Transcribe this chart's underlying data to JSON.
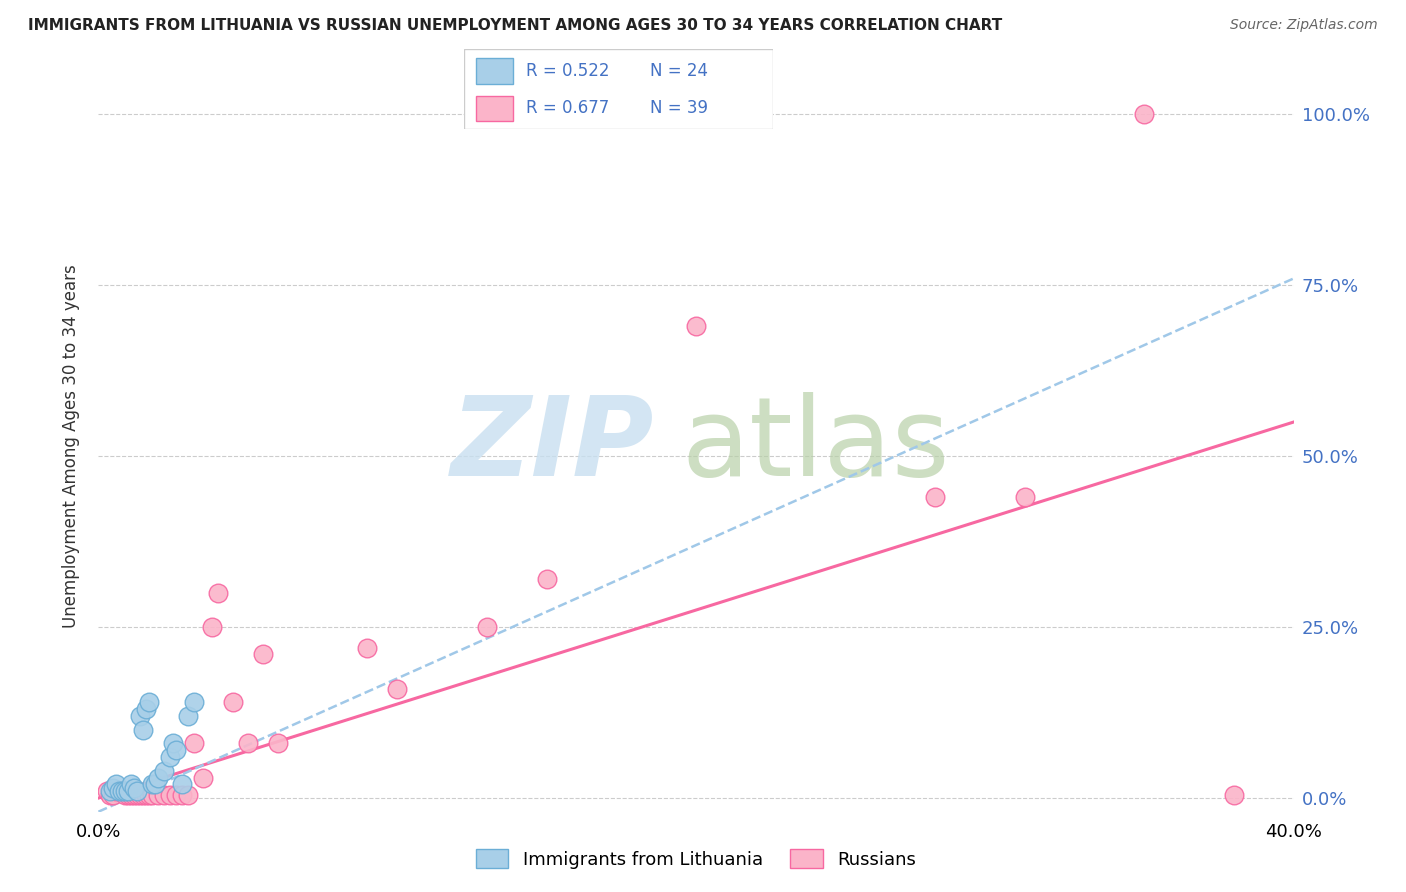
{
  "title": "IMMIGRANTS FROM LITHUANIA VS RUSSIAN UNEMPLOYMENT AMONG AGES 30 TO 34 YEARS CORRELATION CHART",
  "source": "Source: ZipAtlas.com",
  "ylabel": "Unemployment Among Ages 30 to 34 years",
  "xlim": [
    0.0,
    0.4
  ],
  "ylim": [
    -0.02,
    1.05
  ],
  "y_ticks": [
    0.0,
    0.25,
    0.5,
    0.75,
    1.0
  ],
  "y_tick_labels": [
    "0.0%",
    "25.0%",
    "50.0%",
    "75.0%",
    "100.0%"
  ],
  "x_ticks": [
    0.0,
    0.1,
    0.2,
    0.3,
    0.4
  ],
  "x_tick_labels": [
    "0.0%",
    "",
    "",
    "",
    "40.0%"
  ],
  "blue_scatter_color": "#a8cfe8",
  "blue_edge_color": "#6baed6",
  "pink_scatter_color": "#fbb4c9",
  "pink_edge_color": "#f768a1",
  "blue_line_color": "#a0c8e8",
  "pink_line_color": "#f768a1",
  "right_tick_color": "#4472c4",
  "watermark_zip_color": "#c8dff0",
  "watermark_atlas_color": "#b8d0a8",
  "blue_points_x": [
    0.004,
    0.005,
    0.006,
    0.007,
    0.008,
    0.009,
    0.01,
    0.011,
    0.012,
    0.013,
    0.014,
    0.015,
    0.016,
    0.017,
    0.018,
    0.019,
    0.02,
    0.022,
    0.024,
    0.025,
    0.026,
    0.028,
    0.03,
    0.032
  ],
  "blue_points_y": [
    0.01,
    0.015,
    0.02,
    0.01,
    0.01,
    0.01,
    0.01,
    0.02,
    0.015,
    0.01,
    0.12,
    0.1,
    0.13,
    0.14,
    0.02,
    0.02,
    0.03,
    0.04,
    0.06,
    0.08,
    0.07,
    0.02,
    0.12,
    0.14
  ],
  "pink_points_x": [
    0.003,
    0.004,
    0.005,
    0.006,
    0.007,
    0.008,
    0.009,
    0.01,
    0.011,
    0.012,
    0.013,
    0.014,
    0.015,
    0.016,
    0.017,
    0.018,
    0.02,
    0.022,
    0.024,
    0.026,
    0.028,
    0.03,
    0.032,
    0.035,
    0.038,
    0.04,
    0.045,
    0.05,
    0.055,
    0.06,
    0.09,
    0.1,
    0.13,
    0.15,
    0.2,
    0.28,
    0.31,
    0.35,
    0.38
  ],
  "pink_points_y": [
    0.01,
    0.005,
    0.005,
    0.01,
    0.01,
    0.01,
    0.005,
    0.005,
    0.005,
    0.005,
    0.005,
    0.005,
    0.005,
    0.005,
    0.005,
    0.005,
    0.005,
    0.005,
    0.005,
    0.005,
    0.005,
    0.005,
    0.08,
    0.03,
    0.25,
    0.3,
    0.14,
    0.08,
    0.21,
    0.08,
    0.22,
    0.16,
    0.25,
    0.32,
    0.69,
    0.44,
    0.44,
    1.0,
    0.005
  ],
  "blue_trend_x0": 0.0,
  "blue_trend_y0": -0.02,
  "blue_trend_x1": 0.4,
  "blue_trend_y1": 0.76,
  "pink_trend_x0": 0.0,
  "pink_trend_y0": 0.0,
  "pink_trend_x1": 0.4,
  "pink_trend_y1": 0.55,
  "legend_items": [
    {
      "label_r": "R = 0.522",
      "label_n": "N = 24",
      "color": "#a8cfe8",
      "edge": "#6baed6"
    },
    {
      "label_r": "R = 0.677",
      "label_n": "N = 39",
      "color": "#fbb4c9",
      "edge": "#f768a1"
    }
  ],
  "bottom_legend": [
    {
      "label": "Immigrants from Lithuania",
      "color": "#a8cfe8",
      "edge": "#6baed6"
    },
    {
      "label": "Russians",
      "color": "#fbb4c9",
      "edge": "#f768a1"
    }
  ]
}
